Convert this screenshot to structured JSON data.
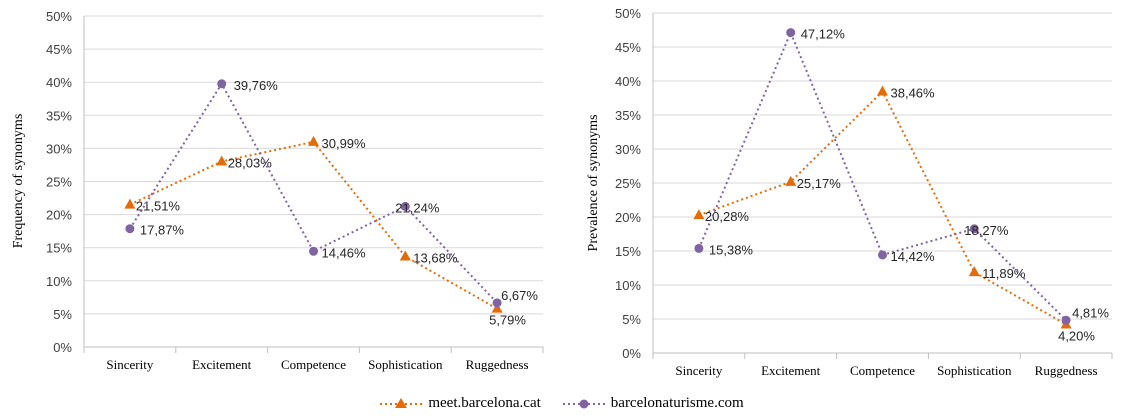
{
  "colors": {
    "series1": "#E36C09",
    "series2": "#8064A2",
    "grid": "#D9D9D9",
    "axis": "#BFBFBF"
  },
  "chart_data": [
    {
      "type": "line",
      "title": "",
      "xlabel": "",
      "ylabel": "Frequency of synonyms",
      "categories": [
        "Sincerity",
        "Excitement",
        "Competence",
        "Sophistication",
        "Ruggedness"
      ],
      "ylim": [
        0,
        50
      ],
      "yticks": [
        "0%",
        "5%",
        "10%",
        "15%",
        "20%",
        "25%",
        "30%",
        "35%",
        "40%",
        "45%",
        "50%"
      ],
      "grid": true,
      "series": [
        {
          "name": "meet.barcelona.cat",
          "marker": "triangle",
          "values": [
            21.51,
            28.03,
            30.99,
            13.68,
            5.79
          ],
          "labels": [
            "21,51%",
            "28,03%",
            "30,99%",
            "13,68%",
            "5,79%"
          ]
        },
        {
          "name": "barcelonaturisme.com",
          "marker": "circle",
          "values": [
            17.87,
            39.76,
            14.46,
            21.24,
            6.67
          ],
          "labels": [
            "17,87%",
            "39,76%",
            "14,46%",
            "21,24%",
            "6,67%"
          ]
        }
      ]
    },
    {
      "type": "line",
      "title": "",
      "xlabel": "",
      "ylabel": "Prevalence of synonyms",
      "categories": [
        "Sincerity",
        "Excitement",
        "Competence",
        "Sophistication",
        "Ruggedness"
      ],
      "ylim": [
        0,
        50
      ],
      "yticks": [
        "0%",
        "5%",
        "10%",
        "15%",
        "20%",
        "25%",
        "30%",
        "35%",
        "40%",
        "45%",
        "50%"
      ],
      "grid": true,
      "series": [
        {
          "name": "meet.barcelona.cat",
          "marker": "triangle",
          "values": [
            20.28,
            25.17,
            38.46,
            11.89,
            4.2
          ],
          "labels": [
            "20,28%",
            "25,17%",
            "38,46%",
            "11,89%",
            "4,20%"
          ]
        },
        {
          "name": "barcelonaturisme.com",
          "marker": "circle",
          "values": [
            15.38,
            47.12,
            14.42,
            18.27,
            4.81
          ],
          "labels": [
            "15,38%",
            "47,12%",
            "14,42%",
            "18,27%",
            "4,81%"
          ]
        }
      ]
    }
  ],
  "legend": {
    "items": [
      "meet.barcelona.cat",
      "barcelonaturisme.com"
    ],
    "placement": "bottom"
  }
}
